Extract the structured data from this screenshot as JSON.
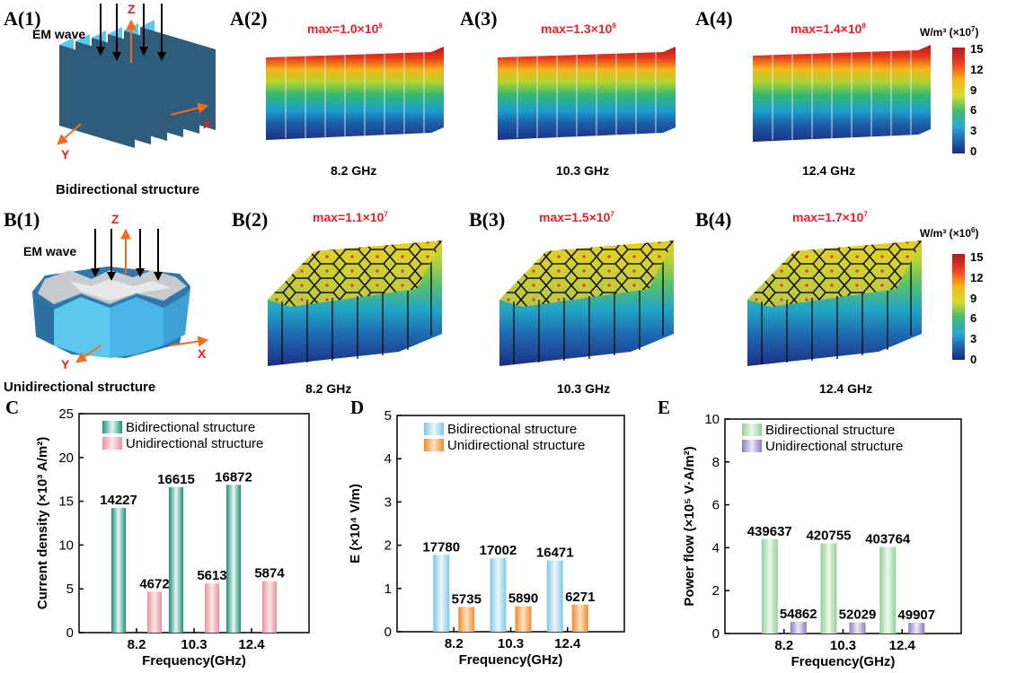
{
  "panels": {
    "a1": {
      "label": "A(1)",
      "em_wave": "EM wave",
      "axis_z": "Z",
      "axis_x": "X",
      "axis_y": "Y",
      "caption": "Bidirectional structure"
    },
    "a2": {
      "label": "A(2)",
      "max": "max=1.0×10",
      "max_exp": "8",
      "freq": "8.2 GHz"
    },
    "a3": {
      "label": "A(3)",
      "max": "max=1.3×10",
      "max_exp": "8",
      "freq": "10.3 GHz"
    },
    "a4": {
      "label": "A(4)",
      "max": "max=1.4×10",
      "max_exp": "8",
      "freq": "12.4 GHz"
    },
    "b1": {
      "label": "B(1)",
      "em_wave": "EM wave",
      "axis_z": "Z",
      "axis_x": "X",
      "axis_y": "Y",
      "caption": "Unidirectional structure"
    },
    "b2": {
      "label": "B(2)",
      "max": "max=1.1×10",
      "max_exp": "7",
      "freq": "8.2 GHz"
    },
    "b3": {
      "label": "B(3)",
      "max": "max=1.5×10",
      "max_exp": "7",
      "freq": "10.3 GHz"
    },
    "b4": {
      "label": "B(4)",
      "max": "max=1.7×10",
      "max_exp": "7",
      "freq": "12.4 GHz"
    }
  },
  "colorbars": {
    "a": {
      "unit": "W/m³ (×10",
      "unit_exp": "7",
      "unit_close": ")",
      "ticks": [
        "15",
        "12",
        "9",
        "6",
        "3",
        "0"
      ]
    },
    "b": {
      "unit": "W/m³ (×10",
      "unit_exp": "6",
      "unit_close": ")",
      "ticks": [
        "15",
        "12",
        "9",
        "6",
        "3",
        "0"
      ]
    }
  },
  "colors": {
    "red_label": "#e8202a",
    "axis_arrow": "#f26b21",
    "panel_blue": "#5bc8f0",
    "panel_dark": "#2e5c7a"
  },
  "chart_data": [
    {
      "type": "bar",
      "label": "C",
      "title": "",
      "xlabel": "Frequency(GHz)",
      "ylabel": "Current density (×10³ A/m²)",
      "categories": [
        "8.2",
        "10.3",
        "12.4"
      ],
      "ylim": [
        0,
        25
      ],
      "yticks": [
        "0",
        "5",
        "10",
        "15",
        "20",
        "25"
      ],
      "series": [
        {
          "name": "Bidirectional structure",
          "values": [
            14227,
            16615,
            16872
          ],
          "plot_values": [
            14.227,
            16.615,
            16.872
          ],
          "labels": [
            "14227",
            "16615",
            "16872"
          ],
          "color_dark": "#1f8f7e",
          "color_light": "#e9f7f3"
        },
        {
          "name": "Unidirectional structure",
          "values": [
            4672,
            5613,
            5874
          ],
          "plot_values": [
            4.672,
            5.613,
            5.874
          ],
          "labels": [
            "4672",
            "5613",
            "5874"
          ],
          "color_dark": "#ef8e98",
          "color_light": "#fde9ec"
        }
      ]
    },
    {
      "type": "bar",
      "label": "D",
      "title": "",
      "xlabel": "Frequency(GHz)",
      "ylabel": "E (×10⁴ V/m)",
      "categories": [
        "8.2",
        "10.3",
        "12.4"
      ],
      "ylim": [
        0,
        5
      ],
      "yticks": [
        "0",
        "1",
        "2",
        "3",
        "4",
        "5"
      ],
      "series": [
        {
          "name": "Bidirectional structure",
          "values": [
            17780,
            17002,
            16471
          ],
          "plot_values": [
            1.778,
            1.7002,
            1.6471
          ],
          "labels": [
            "17780",
            "17002",
            "16471"
          ],
          "color_dark": "#7cc7ea",
          "color_light": "#eef8fd"
        },
        {
          "name": "Unidirectional structure",
          "values": [
            5735,
            5890,
            6271
          ],
          "plot_values": [
            0.5735,
            0.589,
            0.6271
          ],
          "labels": [
            "5735",
            "5890",
            "6271"
          ],
          "color_dark": "#f08a2c",
          "color_light": "#fde3c6"
        }
      ]
    },
    {
      "type": "bar",
      "label": "E",
      "title": "",
      "xlabel": "Frequency(GHz)",
      "ylabel": "Power flow (×10⁵ V·A/m²)",
      "categories": [
        "8.2",
        "10.3",
        "12.4"
      ],
      "ylim": [
        0,
        10
      ],
      "yticks": [
        "0",
        "2",
        "4",
        "6",
        "8",
        "10"
      ],
      "series": [
        {
          "name": "Bidirectional structure",
          "values": [
            439637,
            420755,
            403764
          ],
          "plot_values": [
            4.39637,
            4.20755,
            4.03764
          ],
          "labels": [
            "439637",
            "420755",
            "403764"
          ],
          "color_dark": "#93cf95",
          "color_light": "#eef8ee"
        },
        {
          "name": "Unidirectional structure",
          "values": [
            54862,
            52029,
            49907
          ],
          "plot_values": [
            0.54862,
            0.52029,
            0.49907
          ],
          "labels": [
            "54862",
            "52029",
            "49907"
          ],
          "color_dark": "#8e7dbb",
          "color_light": "#efeaf7"
        }
      ]
    }
  ]
}
